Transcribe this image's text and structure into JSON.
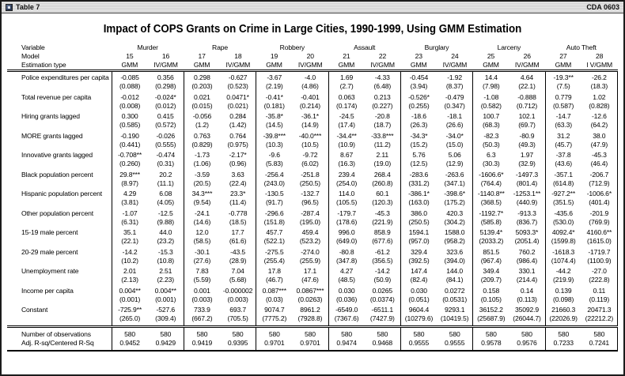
{
  "window": {
    "titlebar_left": "Table 7",
    "titlebar_right": "CDA 0603",
    "icon": "table-document-icon"
  },
  "title": "Impact of COPS Grants on Crime in Large Cities, 1990-1999, Using GMM Estimation",
  "colors": {
    "background": "#ffffff",
    "text": "#000000",
    "border": "#1b1b1b",
    "titlebar_bg": "#d9d9d9",
    "icon_blue": "#2c3a55"
  },
  "table": {
    "header": {
      "variable_label": "Variable",
      "model_label": "Model",
      "estimation_label": "Estimation type",
      "groups": [
        "Murder",
        "Rape",
        "Robbery",
        "Assault",
        "Burglary",
        "Larceny",
        "Auto Theft"
      ],
      "models": [
        "15",
        "16",
        "17",
        "18",
        "19",
        "20",
        "21",
        "22",
        "23",
        "24",
        "25",
        "26",
        "27",
        "28"
      ],
      "estimations": [
        "GMM",
        "IV/GMM",
        "GMM",
        "IV/GMM",
        "GMM",
        "IV/GMM",
        "GMM",
        "IV/GMM",
        "GMM",
        "IV/GMM",
        "GMM",
        "IV/GMM",
        "GMM",
        "I V/GMM"
      ]
    },
    "rows": [
      {
        "label": "Police expenditures per capita",
        "coef": [
          "-0.085",
          "0.356",
          "0.298",
          "-0.627",
          "-3.67",
          "-4.0",
          "1.69",
          "-4.33",
          "-0.454",
          "-1.92",
          "14.4",
          "4.64",
          "-19.3**",
          "-26.2"
        ],
        "se": [
          "(0.088)",
          "(0.298)",
          "(0.203)",
          "(0.523)",
          "(2.19)",
          "(4.86)",
          "(2.7)",
          "(6.48)",
          "(3.94)",
          "(8.37)",
          "(7.98)",
          "(22.1)",
          "(7.5)",
          "(18.3)"
        ]
      },
      {
        "label": "Total revenue per capita",
        "coef": [
          "-0.012",
          "-0.024*",
          "0.021",
          "0.0471*",
          "-0.41*",
          "-0.401",
          "0.063",
          "0.213",
          "-0.526*",
          "-0.479",
          "-1.08",
          "-0.888",
          "0.779",
          "1.02"
        ],
        "se": [
          "(0.008)",
          "(0.012)",
          "(0.015)",
          "(0.021)",
          "(0.181)",
          "(0.214)",
          "(0.174)",
          "(0.227)",
          "(0.255)",
          "(0.347)",
          "(0.582)",
          "(0.712)",
          "(0.587)",
          "(0.828)"
        ]
      },
      {
        "label": "Hiring grants lagged",
        "coef": [
          "0.300",
          "0.415",
          "-0.056",
          "0.284",
          "-35.8*",
          "-36.1*",
          "-24.5",
          "-20.8",
          "-18.6",
          "-18.1",
          "100.7",
          "102.1",
          "-14.7",
          "-12.6"
        ],
        "se": [
          "(0.585)",
          "(0.572)",
          "(1.2)",
          "(1.42)",
          "(14.5)",
          "(14.9)",
          "(17.4)",
          "(18.7)",
          "(26.3)",
          "(26.6)",
          "(68.3)",
          "(69.7)",
          "(63.3)",
          "(64.2)"
        ]
      },
      {
        "label": "MORE grants lagged",
        "coef": [
          "-0.190",
          "-0.026",
          "0.763",
          "0.764",
          "-39.8***",
          "-40.0***",
          "-34.4**",
          "-33.8***",
          "-34.3*",
          "-34.0*",
          "-82.3",
          "-80.9",
          "31.2",
          "38.0"
        ],
        "se": [
          "(0.441)",
          "(0.555)",
          "(0.829)",
          "(0.975)",
          "(10.3)",
          "(10.5)",
          "(10.9)",
          "(11.2)",
          "(15.2)",
          "(15.0)",
          "(50.3)",
          "(49.3)",
          "(45.7)",
          "(47.9)"
        ]
      },
      {
        "label": "Innovative grants lagged",
        "coef": [
          "-0.708**",
          "-0.474",
          "-1.73",
          "-2.17*",
          "-9.6",
          "-9.72",
          "8.67",
          "2.11",
          "5.76",
          "5.06",
          "6.3",
          "1.97",
          "-37.8",
          "-45.3"
        ],
        "se": [
          "(0.260)",
          "(0.31)",
          "(1.06)",
          "(0.96)",
          "(5.83)",
          "(6.02)",
          "(16.3)",
          "(19.0)",
          "(12.5)",
          "(12.9)",
          "(30.3)",
          "(32.9)",
          "(43.6)",
          "(46.4)"
        ]
      },
      {
        "label": "Black population percent",
        "coef": [
          "29.8***",
          "20.2",
          "-3.59",
          "3.63",
          "-256.4",
          "-251.8",
          "239.4",
          "268.4",
          "-283.6",
          "-263.6",
          "-1606.6*",
          "-1497.3",
          "-357.1",
          "-206.7"
        ],
        "se": [
          "(8.97)",
          "(11.1)",
          "(20.5)",
          "(22.4)",
          "(243.0)",
          "(250.5)",
          "(254.0)",
          "(260.8)",
          "(331.2)",
          "(347.1)",
          "(764.4)",
          "(801.4)",
          "(614.8)",
          "(712.9)"
        ]
      },
      {
        "label": "Hispanic population percent",
        "coef": [
          "4.29",
          "6.08",
          "34.3***",
          "23.3*",
          "-130.5",
          "-132.7",
          "114.0",
          "60.1",
          "-386.1*",
          "-398.6*",
          "-1140.8**",
          "-1253.1**",
          "-927.2**",
          "-1006.6*"
        ],
        "se": [
          "(3.81)",
          "(4.05)",
          "(9.54)",
          "(11.4)",
          "(91.7)",
          "(96.5)",
          "(105.5)",
          "(120.3)",
          "(163.0)",
          "(175.2)",
          "(368.5)",
          "(440.9)",
          "(351.5)",
          "(401.4)"
        ]
      },
      {
        "label": "Other population percent",
        "coef": [
          "-1.07",
          "-12.5",
          "-24.1",
          "-0.778",
          "-296.6",
          "-287.4",
          "-179.7",
          "-45.3",
          "386.0",
          "420.3",
          "-1192.7*",
          "-913.3",
          "-435.6",
          "-201.9"
        ],
        "se": [
          "(6.31)",
          "(9.88)",
          "(14.6)",
          "(18.5)",
          "(151.8)",
          "(195.0)",
          "(178.6)",
          "(221.9)",
          "(250.5)",
          "(304.2)",
          "(585.8)",
          "(836.7)",
          "(530.0)",
          "(769.9)"
        ]
      },
      {
        "label": "15-19 male percent",
        "coef": [
          "35.1",
          "44.0",
          "12.0",
          "17.7",
          "457.7",
          "459.4",
          "996.0",
          "858.9",
          "1594.1",
          "1588.0",
          "5139.4*",
          "5093.3*",
          "4092.4*",
          "4160.6**"
        ],
        "se": [
          "(22.1)",
          "(23.2)",
          "(58.5)",
          "(61.6)",
          "(522.1)",
          "(523.2)",
          "(649.0)",
          "(677.6)",
          "(957.0)",
          "(958.2)",
          "(2033.2)",
          "(2051.4)",
          "(1599.8)",
          "(1615.0)"
        ]
      },
      {
        "label": "20-29 male percent",
        "coef": [
          "-14.2",
          "-15.3",
          "-30.1",
          "-43.5",
          "-275.5",
          "-274.0",
          "-80.8",
          "-61.2",
          "329.4",
          "323.6",
          "851.5",
          "760.2",
          "-1618.3",
          "-1719.7"
        ],
        "se": [
          "(10.2)",
          "(10.8)",
          "(27.6)",
          "(28.9)",
          "(255.4)",
          "(255.9)",
          "(347.8)",
          "(356.5)",
          "(392.5)",
          "(394.0)",
          "(967.4)",
          "(986.4)",
          "(1074.4)",
          "(1100.9)"
        ]
      },
      {
        "label": "Unemployment rate",
        "coef": [
          "2.01",
          "2.51",
          "7.83",
          "7.04",
          "17.8",
          "17.1",
          "4.27",
          "-14.2",
          "147.4",
          "144.0",
          "349.4",
          "330.1",
          "-44.2",
          "-27.0"
        ],
        "se": [
          "(2.13)",
          "(2.23)",
          "(5.59)",
          "(5.68)",
          "(46.7)",
          "(47.6)",
          "(48.5)",
          "(50.9)",
          "(82.4)",
          "(84.1)",
          "(209.7)",
          "(214.4)",
          "(219.9)",
          "(222.8)"
        ]
      },
      {
        "label": "Income per capita",
        "coef": [
          "0.004**",
          "0.004**",
          "0.001",
          "-0.000002",
          "0.087***",
          "0.0867***",
          "0.030",
          "0.0265",
          "0.030",
          "0.0272",
          "0.158",
          "0.14",
          "0.139",
          "0.11"
        ],
        "se": [
          "(0.001)",
          "(0.001)",
          "(0.003)",
          "(0.003)",
          "(0.03)",
          "(0.0263)",
          "(0.036)",
          "(0.0374)",
          "(0.051)",
          "(0.0531)",
          "(0.105)",
          "(0.113)",
          "(0.098)",
          "(0.119)"
        ]
      },
      {
        "label": "Constant",
        "coef": [
          "-725.9**",
          "-527.6",
          "733.9",
          "693.7",
          "9074.7",
          "8961.2",
          "-6549.0",
          "-6511.1",
          "9604.4",
          "9293.1",
          "36152.2",
          "35092.9",
          "21660.3",
          "20471.3"
        ],
        "se": [
          "(265.0)",
          "(309.4)",
          "(667.2)",
          "(705.5)",
          "(7775.2)",
          "(7928.8)",
          "(7367.6)",
          "(7427.9)",
          "(10279.6)",
          "(10419.5)",
          "(25687.9)",
          "(26044.7)",
          "(22026.9)",
          "(22212.2)"
        ]
      }
    ],
    "footer": [
      {
        "label": "Number of observations",
        "values": [
          "580",
          "580",
          "580",
          "580",
          "580",
          "580",
          "580",
          "580",
          "580",
          "580",
          "580",
          "580",
          "580",
          "580"
        ]
      },
      {
        "label": "Adj. R-sq/Centered R-Sq",
        "values": [
          "0.9452",
          "0.9429",
          "0.9419",
          "0.9395",
          "0.9701",
          "0.9701",
          "0.9474",
          "0.9468",
          "0.9555",
          "0.9555",
          "0.9578",
          "0.9576",
          "0.7233",
          "0.7241"
        ]
      }
    ]
  }
}
